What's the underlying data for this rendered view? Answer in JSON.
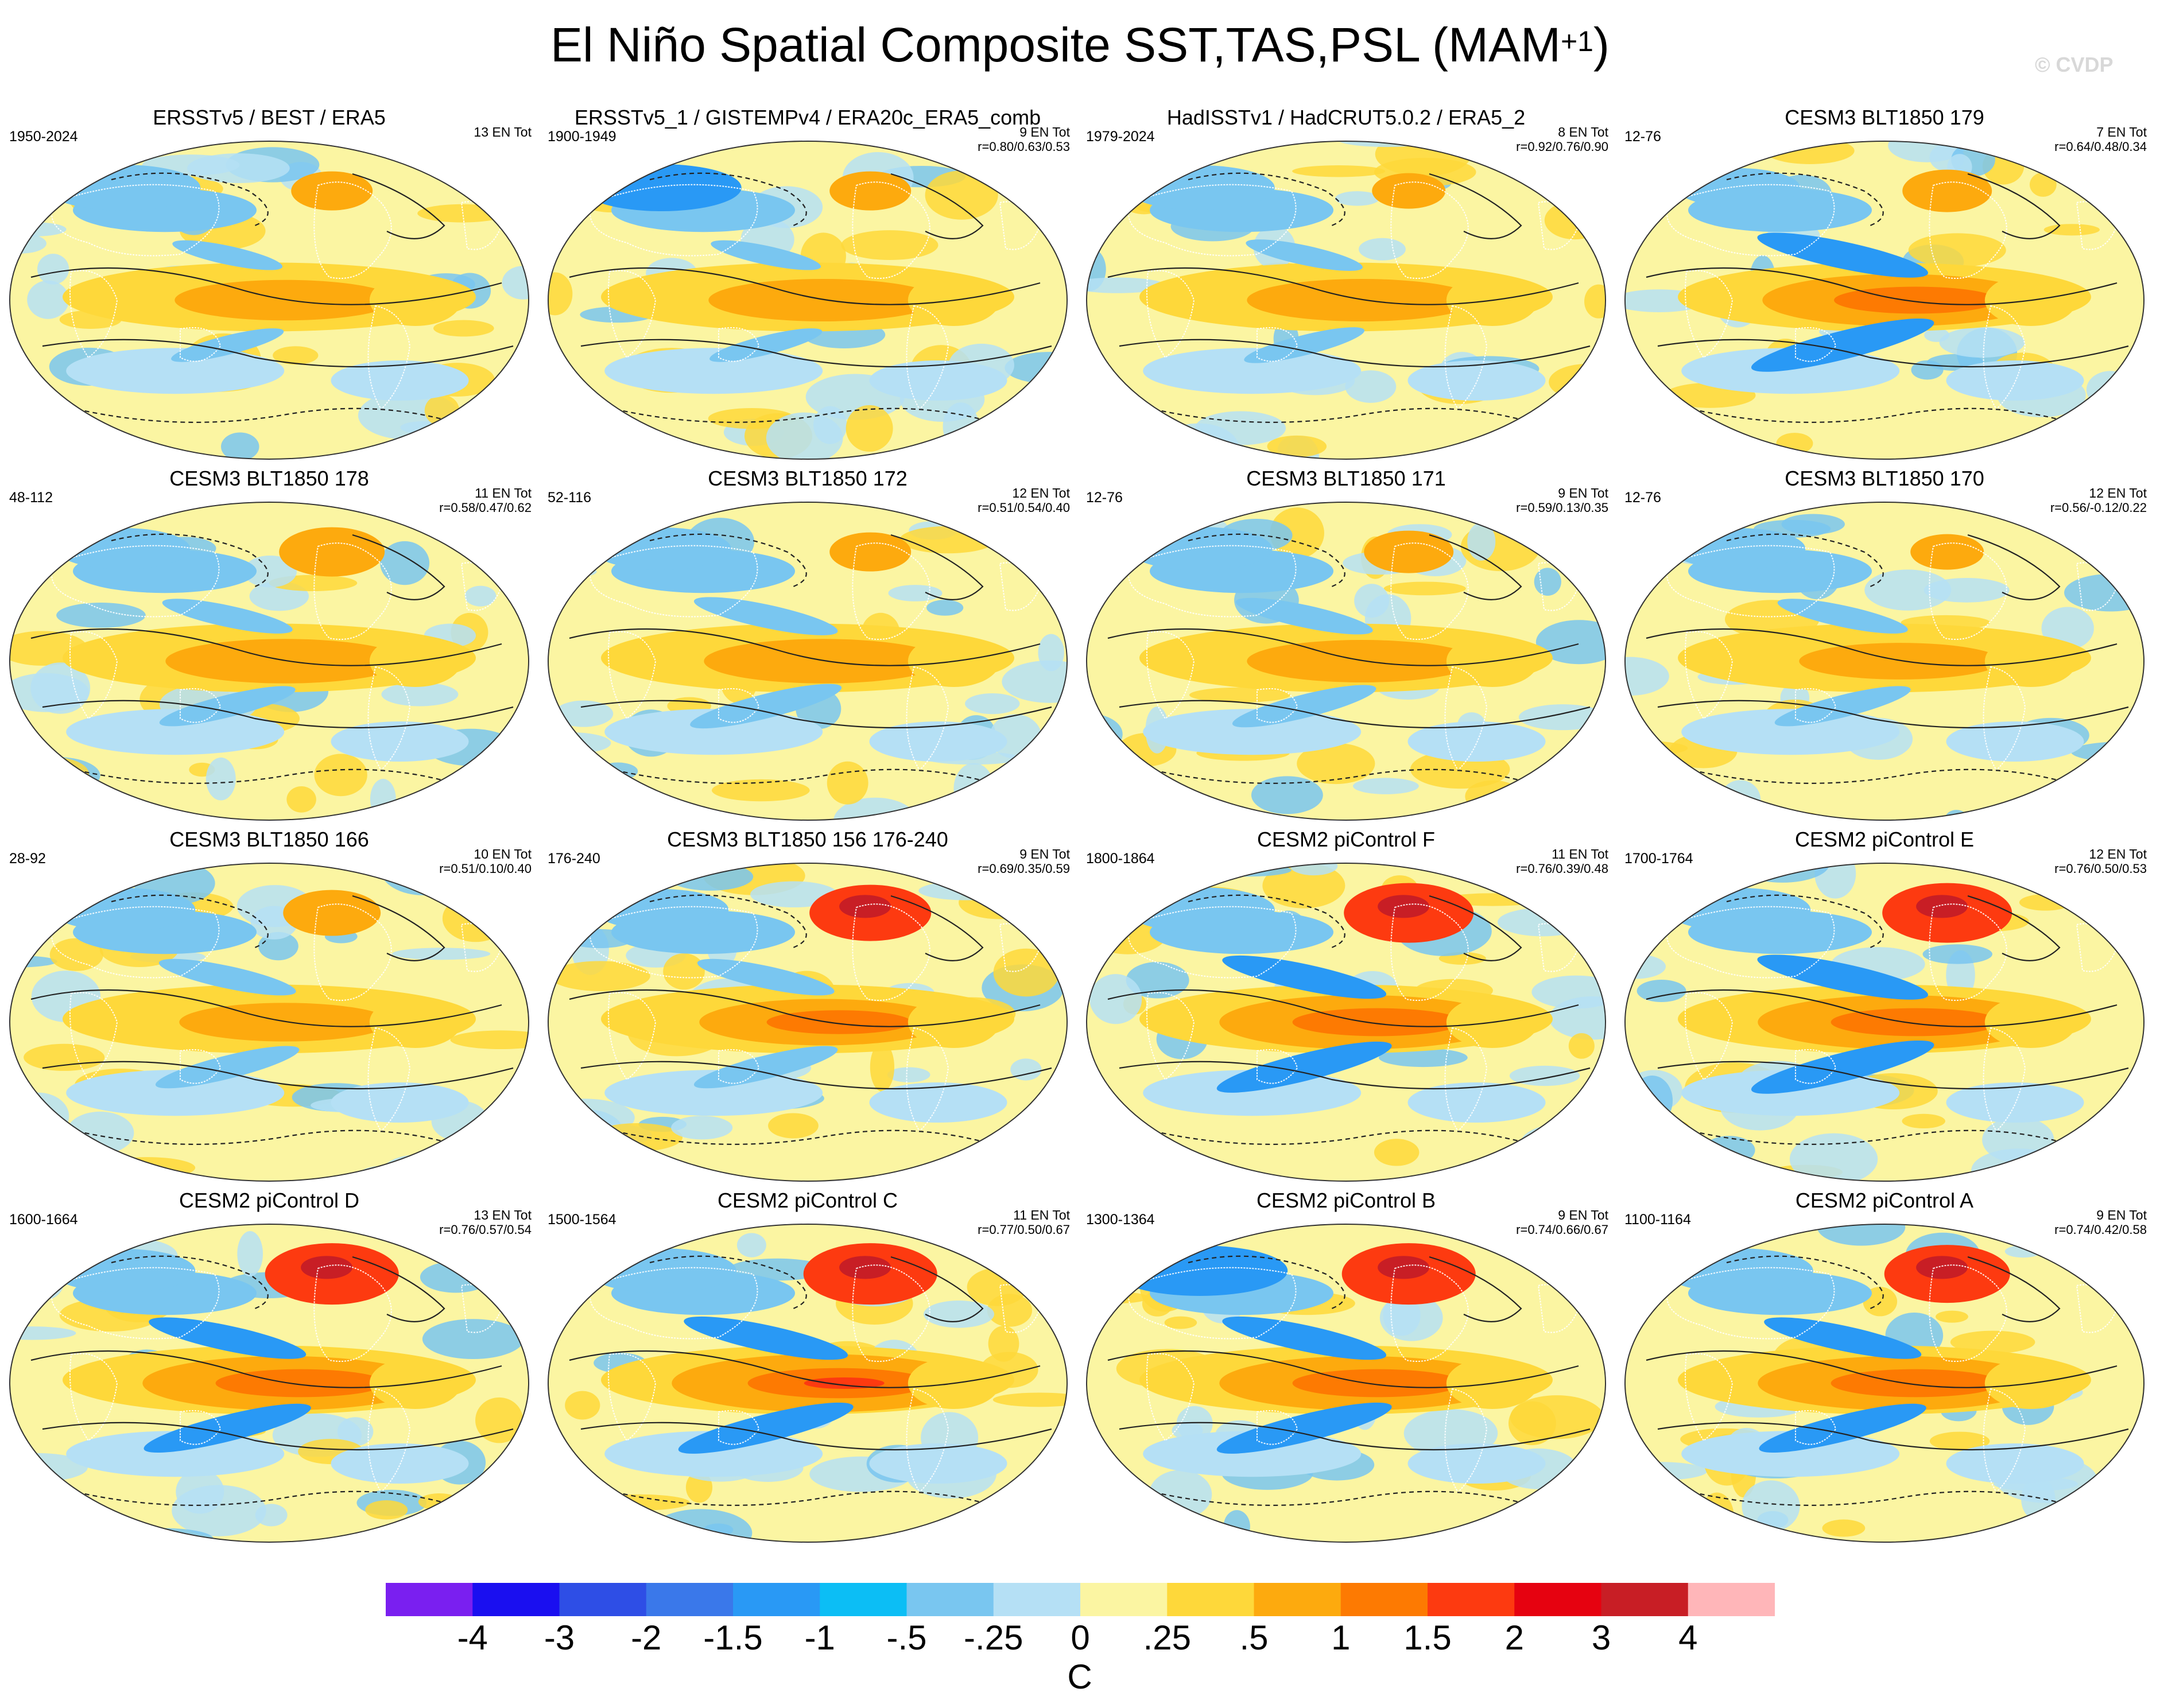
{
  "page_title": "El Niño Spatial Composite SST,TAS,PSL (MAM",
  "page_title_sup": "+1",
  "page_title_close": ")",
  "copyright": "© CVDP",
  "colorbar": {
    "colors": [
      "#7a1ff0",
      "#1a0ff0",
      "#2e4ee6",
      "#3a78ea",
      "#2999f5",
      "#0cbef5",
      "#79c6f0",
      "#b5e0f5",
      "#fbf5a2",
      "#fed83a",
      "#fdaa0e",
      "#fd7a02",
      "#fd3a10",
      "#e60210",
      "#c81e25",
      "#ffb6b9"
    ],
    "ticks": [
      "-4",
      "-3",
      "-2",
      "-1.5",
      "-1",
      "-.5",
      "-.25",
      "0",
      ".25",
      ".5",
      "1",
      "1.5",
      "2",
      "3",
      "4"
    ],
    "units": "C"
  },
  "chart_data": [
    {
      "type": "heatmap",
      "title": "ERSSTv5 / BEST / ERA5",
      "period": "1950-2024",
      "count": "13 EN Tot",
      "corr": "",
      "enso_strength": 0.45,
      "pacific_cold": 0.15,
      "arctic_warm": 0.3,
      "asia_cold": 0.5
    },
    {
      "type": "heatmap",
      "title": "ERSSTv5_1 / GISTEMPv4 / ERA20c_ERA5_comb",
      "period": "1900-1949",
      "count": "9 EN Tot",
      "corr": "r=0.80/0.63/0.53",
      "enso_strength": 0.5,
      "pacific_cold": 0.15,
      "arctic_warm": 0.3,
      "asia_cold": 0.55
    },
    {
      "type": "heatmap",
      "title": "HadISSTv1 / HadCRUT5.0.2 / ERA5_2",
      "period": "1979-2024",
      "count": "8 EN Tot",
      "corr": "r=0.92/0.76/0.90",
      "enso_strength": 0.5,
      "pacific_cold": 0.2,
      "arctic_warm": 0.2,
      "asia_cold": 0.45
    },
    {
      "type": "heatmap",
      "title": "CESM3 BLT1850 179",
      "period": "12-76",
      "count": "7 EN Tot",
      "corr": "r=0.64/0.48/0.34",
      "enso_strength": 0.75,
      "pacific_cold": 0.6,
      "arctic_warm": 0.4,
      "asia_cold": 0.2
    },
    {
      "type": "heatmap",
      "title": "CESM3 BLT1850 178",
      "period": "48-112",
      "count": "11 EN Tot",
      "corr": "r=0.58/0.47/0.62",
      "enso_strength": 0.55,
      "pacific_cold": 0.3,
      "arctic_warm": 0.6,
      "asia_cold": 0.3
    },
    {
      "type": "heatmap",
      "title": "CESM3 BLT1850 172",
      "period": "52-116",
      "count": "12 EN Tot",
      "corr": "r=0.51/0.54/0.40",
      "enso_strength": 0.55,
      "pacific_cold": 0.4,
      "arctic_warm": 0.3,
      "asia_cold": 0.35
    },
    {
      "type": "heatmap",
      "title": "CESM3 BLT1850 171",
      "period": "12-76",
      "count": "9 EN Tot",
      "corr": "r=0.59/0.13/0.35",
      "enso_strength": 0.5,
      "pacific_cold": 0.35,
      "arctic_warm": 0.4,
      "asia_cold": 0.4
    },
    {
      "type": "heatmap",
      "title": "CESM3 BLT1850 170",
      "period": "12-76",
      "count": "12 EN Tot",
      "corr": "r=0.56/-0.12/0.22",
      "enso_strength": 0.35,
      "pacific_cold": 0.3,
      "arctic_warm": 0.2,
      "asia_cold": 0.3
    },
    {
      "type": "heatmap",
      "title": "CESM3 BLT1850 166",
      "period": "28-92",
      "count": "10 EN Tot",
      "corr": "r=0.51/0.10/0.40",
      "enso_strength": 0.4,
      "pacific_cold": 0.35,
      "arctic_warm": 0.5,
      "asia_cold": 0.4
    },
    {
      "type": "heatmap",
      "title": "CESM3 BLT1850 156 176-240",
      "period": "176-240",
      "count": "9 EN Tot",
      "corr": "r=0.69/0.35/0.59",
      "enso_strength": 0.6,
      "pacific_cold": 0.35,
      "arctic_warm": 0.8,
      "asia_cold": 0.3
    },
    {
      "type": "heatmap",
      "title": "CESM2 piControl F",
      "period": "1800-1864",
      "count": "11 EN Tot",
      "corr": "r=0.76/0.39/0.48",
      "enso_strength": 0.8,
      "pacific_cold": 0.55,
      "arctic_warm": 0.9,
      "asia_cold": 0.45
    },
    {
      "type": "heatmap",
      "title": "CESM2 piControl E",
      "period": "1700-1764",
      "count": "12 EN Tot",
      "corr": "r=0.76/0.50/0.53",
      "enso_strength": 0.8,
      "pacific_cold": 0.6,
      "arctic_warm": 0.9,
      "asia_cold": 0.4
    },
    {
      "type": "heatmap",
      "title": "CESM2 piControl D",
      "period": "1600-1664",
      "count": "13 EN Tot",
      "corr": "r=0.76/0.57/0.54",
      "enso_strength": 0.8,
      "pacific_cold": 0.5,
      "arctic_warm": 0.95,
      "asia_cold": 0.4
    },
    {
      "type": "heatmap",
      "title": "CESM2 piControl C",
      "period": "1500-1564",
      "count": "11 EN Tot",
      "corr": "r=0.77/0.50/0.67",
      "enso_strength": 0.9,
      "pacific_cold": 0.55,
      "arctic_warm": 0.95,
      "asia_cold": 0.45
    },
    {
      "type": "heatmap",
      "title": "CESM2 piControl B",
      "period": "1300-1364",
      "count": "9 EN Tot",
      "corr": "r=0.74/0.66/0.67",
      "enso_strength": 0.8,
      "pacific_cold": 0.55,
      "arctic_warm": 0.95,
      "asia_cold": 0.7
    },
    {
      "type": "heatmap",
      "title": "CESM2 piControl A",
      "period": "1100-1164",
      "count": "9 EN Tot",
      "corr": "r=0.74/0.42/0.58",
      "enso_strength": 0.8,
      "pacific_cold": 0.5,
      "arctic_warm": 0.85,
      "asia_cold": 0.45
    }
  ]
}
